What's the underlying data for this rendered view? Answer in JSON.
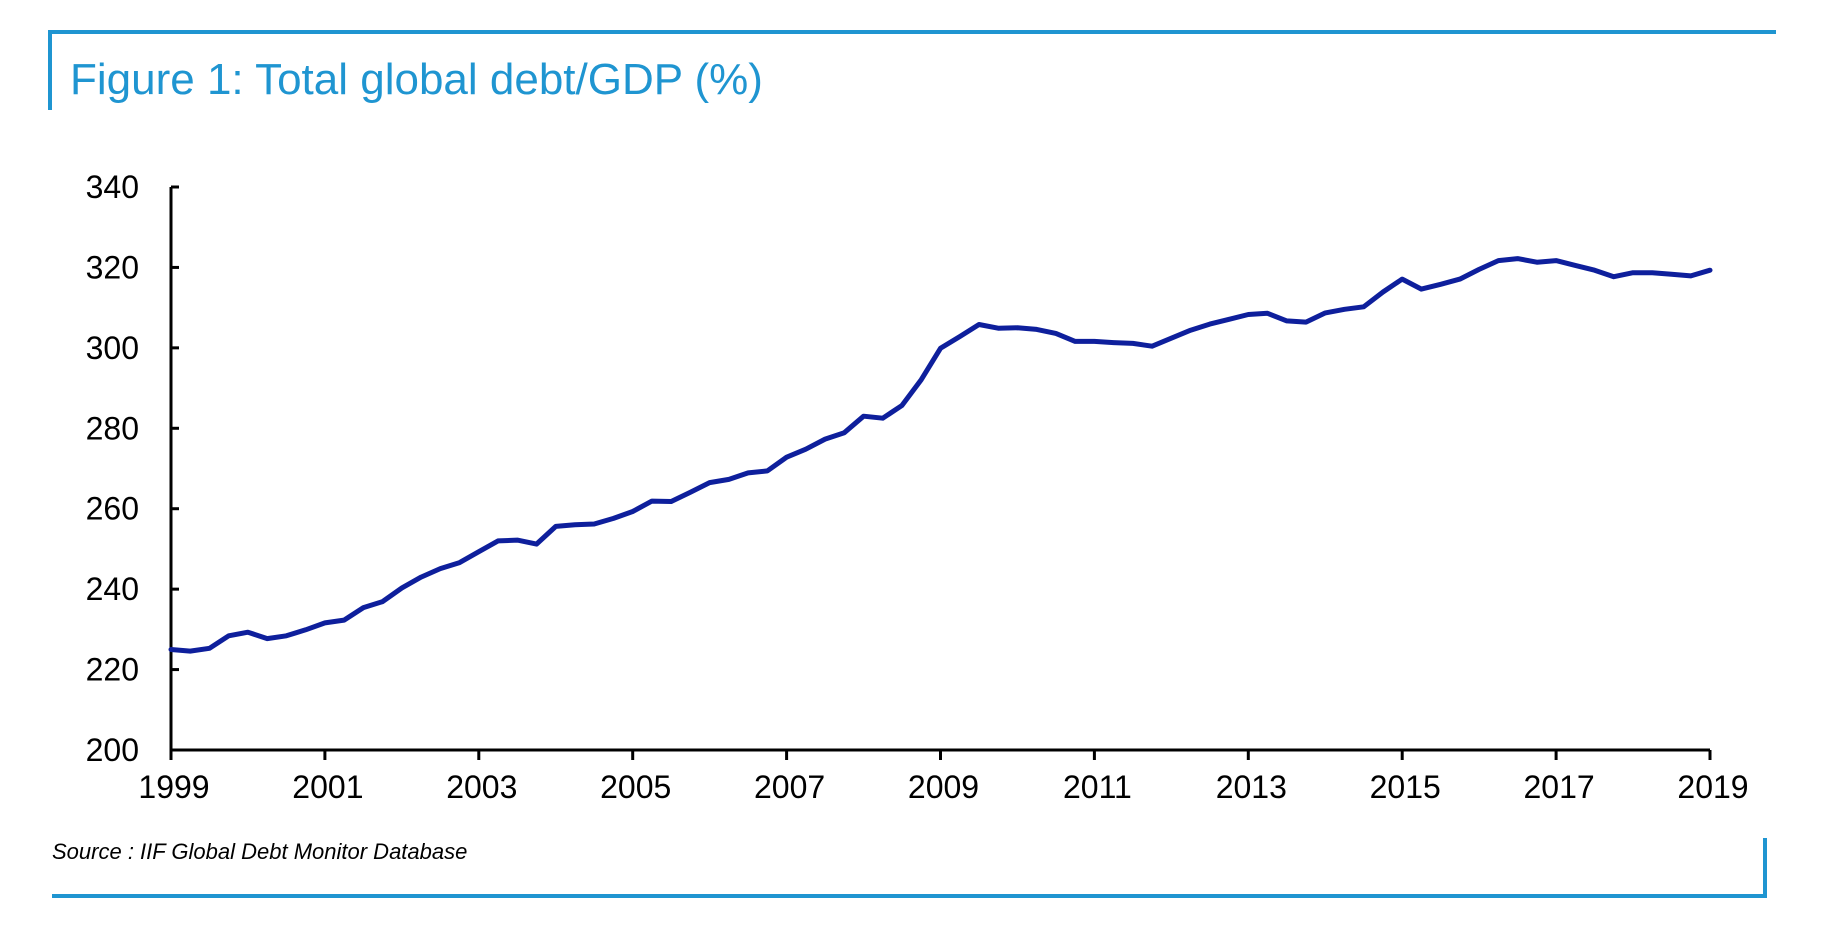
{
  "title": "Figure 1: Total global debt/GDP (%)",
  "source": "Source : IIF Global Debt Monitor Database",
  "colors": {
    "accent": "#1f95d1",
    "series": "#0e1f9c"
  },
  "chart_data": {
    "type": "line",
    "title": "Figure 1: Total global debt/GDP (%)",
    "xlabel": "",
    "ylabel": "",
    "xlim": [
      1999,
      2019
    ],
    "ylim": [
      200,
      340
    ],
    "x_ticks": [
      "1999",
      "2001",
      "2003",
      "2005",
      "2007",
      "2009",
      "2011",
      "2013",
      "2015",
      "2017",
      "2019"
    ],
    "y_ticks": [
      "200",
      "220",
      "240",
      "260",
      "280",
      "300",
      "320",
      "340"
    ],
    "grid": false,
    "legend": "none",
    "series": [
      {
        "x": [
          1999.0,
          1999.25,
          1999.5,
          1999.75,
          2000.0,
          2000.25,
          2000.5,
          2000.75,
          2001.0,
          2001.25,
          2001.5,
          2001.75,
          2002.0,
          2002.25,
          2002.5,
          2002.75,
          2003.0,
          2003.25,
          2003.5,
          2003.75,
          2004.0,
          2004.25,
          2004.5,
          2004.75,
          2005.0,
          2005.25,
          2005.5,
          2005.75,
          2006.0,
          2006.25,
          2006.5,
          2006.75,
          2007.0,
          2007.25,
          2007.5,
          2007.75,
          2008.0,
          2008.25,
          2008.5,
          2008.75,
          2009.0,
          2009.25,
          2009.5,
          2009.75,
          2010.0,
          2010.25,
          2010.5,
          2010.75,
          2011.0,
          2011.25,
          2011.5,
          2011.75,
          2012.0,
          2012.25,
          2012.5,
          2012.75,
          2013.0,
          2013.25,
          2013.5,
          2013.75,
          2014.0,
          2014.25,
          2014.5,
          2014.75,
          2015.0,
          2015.25,
          2015.5,
          2015.75,
          2016.0,
          2016.25,
          2016.5,
          2016.75,
          2017.0,
          2017.25,
          2017.5,
          2017.75,
          2018.0,
          2018.25,
          2018.5,
          2018.75,
          2019.0
        ],
        "values": [
          225.0,
          224.6,
          225.3,
          228.4,
          229.3,
          227.7,
          228.4,
          229.9,
          231.6,
          232.3,
          235.4,
          236.9,
          240.3,
          243.0,
          245.1,
          246.6,
          249.3,
          252.0,
          252.2,
          251.2,
          255.6,
          256.0,
          256.2,
          257.6,
          259.3,
          261.9,
          261.8,
          264.1,
          266.5,
          267.3,
          268.9,
          269.4,
          272.8,
          274.8,
          277.3,
          278.9,
          283.0,
          282.5,
          285.7,
          292.1,
          299.9,
          302.8,
          305.8,
          304.9,
          305.0,
          304.6,
          303.6,
          301.6,
          301.6,
          301.3,
          301.1,
          300.4,
          302.4,
          304.4,
          305.9,
          307.1,
          308.3,
          308.6,
          306.7,
          306.4,
          308.7,
          309.6,
          310.2,
          313.9,
          317.1,
          314.6,
          315.8,
          317.1,
          319.5,
          321.7,
          322.2,
          321.3,
          321.7,
          320.5,
          319.3,
          317.7,
          318.7,
          318.7,
          318.3,
          317.9,
          319.3
        ]
      }
    ]
  }
}
